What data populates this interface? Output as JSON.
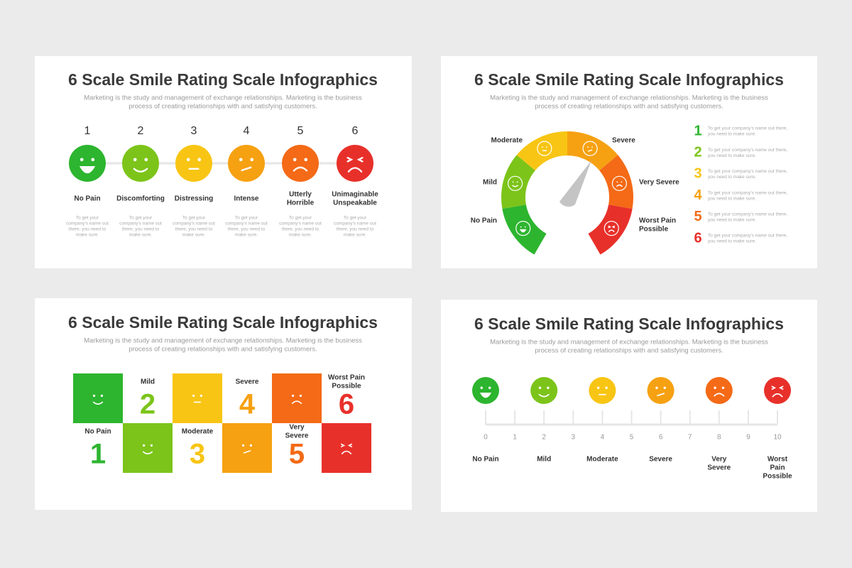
{
  "colors": [
    "#2db52f",
    "#7cc41a",
    "#f8c514",
    "#f6a112",
    "#f46a16",
    "#e8302a"
  ],
  "slides": [
    {
      "title": "6 Scale Smile Rating Scale Infographics",
      "subtitle": [
        "Marketing is the study and management of exchange relationships. Marketing is the business",
        "process of creating relationships with and satisfying customers."
      ],
      "items": [
        {
          "number": "1",
          "label": [
            "No Pain"
          ],
          "description": [
            "To get your",
            "company's name out",
            "there, you need to",
            "make sure."
          ]
        },
        {
          "number": "2",
          "label": [
            "Discomforting"
          ],
          "description": [
            "To get your",
            "company's name out",
            "there, you need to",
            "make sure."
          ]
        },
        {
          "number": "3",
          "label": [
            "Distressing"
          ],
          "description": [
            "To get your",
            "company's name out",
            "there, you need to",
            "make sure."
          ]
        },
        {
          "number": "4",
          "label": [
            "Intense"
          ],
          "description": [
            "To get your",
            "company's name out",
            "there, you need to",
            "make sure."
          ]
        },
        {
          "number": "5",
          "label": [
            "Utterly",
            "Horrible"
          ],
          "description": [
            "To get your",
            "company's name out",
            "there, you need to",
            "make sure."
          ]
        },
        {
          "number": "6",
          "label": [
            "Unimaginable",
            "Unspeakable"
          ],
          "description": [
            "To get your",
            "company's name out",
            "there, you need to",
            "make sure."
          ]
        }
      ]
    },
    {
      "title": "6 Scale Smile Rating Scale Infographics",
      "subtitle": [
        "Marketing is the study and management of exchange relationships. Marketing is the business",
        "process of creating relationships with and satisfying customers."
      ],
      "gauge_labels": [
        [
          "No Pain"
        ],
        [
          "Mild"
        ],
        [
          "Moderate"
        ],
        [
          "Severe"
        ],
        [
          "Very Severe"
        ],
        [
          "Worst Pain",
          "Possible"
        ]
      ],
      "list": [
        {
          "number": "1",
          "text": [
            "To get your company's name out there,",
            "you need to make sure."
          ]
        },
        {
          "number": "2",
          "text": [
            "To get your company's name out there,",
            "you need to make sure."
          ]
        },
        {
          "number": "3",
          "text": [
            "To get your company's name out there,",
            "you need to make sure."
          ]
        },
        {
          "number": "4",
          "text": [
            "To get your company's name out there,",
            "you need to make sure."
          ]
        },
        {
          "number": "5",
          "text": [
            "To get your company's name out there,",
            "you need to make sure."
          ]
        },
        {
          "number": "6",
          "text": [
            "To get your company's name out there,",
            "you need to make sure."
          ]
        }
      ]
    },
    {
      "title": "6 Scale Smile Rating Scale Infographics",
      "subtitle": [
        "Marketing is the study and management of exchange relationships. Marketing is the business",
        "process of creating relationships with and satisfying customers."
      ],
      "cells": [
        {
          "number": "1",
          "label": [
            "No Pain"
          ]
        },
        {
          "number": "2",
          "label": [
            "Mild"
          ]
        },
        {
          "number": "3",
          "label": [
            "Moderate"
          ]
        },
        {
          "number": "4",
          "label": [
            "Severe"
          ]
        },
        {
          "number": "5",
          "label": [
            "Very",
            "Severe"
          ]
        },
        {
          "number": "6",
          "label": [
            "Worst Pain",
            "Possible"
          ]
        }
      ]
    },
    {
      "title": "6 Scale Smile Rating Scale Infographics",
      "subtitle": [
        "Marketing is the study and management of exchange relationships. Marketing is the business",
        "process of creating relationships with and satisfying customers."
      ],
      "scale": [
        0,
        1,
        2,
        3,
        4,
        5,
        6,
        7,
        8,
        9,
        10
      ],
      "labels": [
        [
          "No Pain"
        ],
        [
          "Mild"
        ],
        [
          "Moderate"
        ],
        [
          "Severe"
        ],
        [
          "Very",
          "Severe"
        ],
        [
          "Worst",
          "Pain",
          "Possible"
        ]
      ]
    }
  ]
}
